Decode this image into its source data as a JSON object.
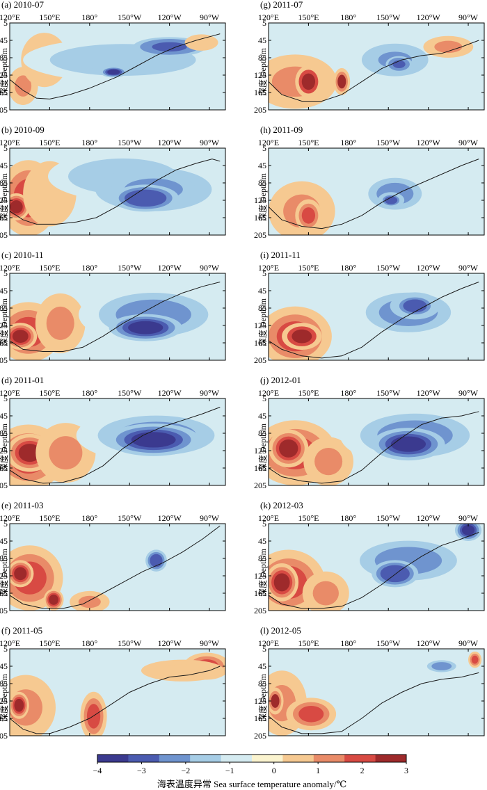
{
  "figure": {
    "colorbar": {
      "label": "海表温度异常 Sea surface temperature anomaly/℃",
      "ticks": [
        "-4",
        "-3",
        "-2",
        "-1",
        "0",
        "1",
        "2",
        "3"
      ],
      "range": [
        -4,
        3
      ],
      "colors": [
        "#3b3a8f",
        "#4b5bb0",
        "#6f94cf",
        "#a6cde6",
        "#d5ebf1",
        "#fbf4cf",
        "#f6c991",
        "#e98b68",
        "#d84a43",
        "#9e2a2b"
      ]
    },
    "x_ticks": [
      "120°E",
      "150°E",
      "180°",
      "150°W",
      "120°W",
      "90°W"
    ],
    "y_ticks": [
      "5",
      "45",
      "85",
      "125",
      "165",
      "205"
    ],
    "y_label": "深度 Depth/m"
  },
  "chart_data": [
    {
      "type": "heatmap",
      "panel": "(a) 2010-07",
      "title": "(a) 2010-07",
      "ylim": [
        205,
        5
      ],
      "features": [
        {
          "lon": 130,
          "depth": 150,
          "rx": 9,
          "rd": 35,
          "value": 1.2
        },
        {
          "lon": 146,
          "depth": 90,
          "rx": 14,
          "rd": 50,
          "value": 0.8
        },
        {
          "lon": 205,
          "depth": 90,
          "rx": 60,
          "rd": 40,
          "value": -1.6
        },
        {
          "lon": 240,
          "depth": 60,
          "rx": 22,
          "rd": 18,
          "value": -3.2
        },
        {
          "lon": 198,
          "depth": 118,
          "rx": 8,
          "rd": 10,
          "value": -3.4
        },
        {
          "lon": 264,
          "depth": 50,
          "rx": 10,
          "rd": 15,
          "value": 0.8
        }
      ],
      "thermocline": [
        [
          120,
          135
        ],
        [
          130,
          160
        ],
        [
          140,
          178
        ],
        [
          150,
          180
        ],
        [
          165,
          170
        ],
        [
          180,
          155
        ],
        [
          200,
          130
        ],
        [
          215,
          105
        ],
        [
          230,
          80
        ],
        [
          245,
          60
        ],
        [
          260,
          45
        ],
        [
          272,
          35
        ],
        [
          278,
          30
        ]
      ]
    },
    {
      "type": "heatmap",
      "panel": "(b) 2010-09",
      "title": "(b) 2010-09",
      "ylim": [
        205,
        5
      ],
      "features": [
        {
          "lon": 134,
          "depth": 120,
          "rx": 18,
          "rd": 70,
          "value": 1.7
        },
        {
          "lon": 125,
          "depth": 140,
          "rx": 8,
          "rd": 25,
          "value": 2.8
        },
        {
          "lon": 150,
          "depth": 110,
          "rx": 16,
          "rd": 60,
          "value": 0.8
        },
        {
          "lon": 205,
          "depth": 70,
          "rx": 45,
          "rd": 45,
          "value": -1.6
        },
        {
          "lon": 228,
          "depth": 100,
          "rx": 35,
          "rd": 40,
          "value": -2.4
        },
        {
          "lon": 222,
          "depth": 120,
          "rx": 20,
          "rd": 25,
          "value": -3.3
        }
      ],
      "thermocline": [
        [
          120,
          150
        ],
        [
          130,
          170
        ],
        [
          140,
          180
        ],
        [
          155,
          180
        ],
        [
          170,
          175
        ],
        [
          185,
          165
        ],
        [
          200,
          140
        ],
        [
          215,
          110
        ],
        [
          230,
          80
        ],
        [
          245,
          55
        ],
        [
          260,
          40
        ],
        [
          272,
          30
        ],
        [
          278,
          35
        ]
      ]
    },
    {
      "type": "heatmap",
      "panel": "(c) 2010-11",
      "title": "(c) 2010-11",
      "ylim": [
        205,
        5
      ],
      "features": [
        {
          "lon": 134,
          "depth": 140,
          "rx": 20,
          "rd": 55,
          "value": 2.1
        },
        {
          "lon": 128,
          "depth": 150,
          "rx": 10,
          "rd": 25,
          "value": 2.9
        },
        {
          "lon": 158,
          "depth": 120,
          "rx": 15,
          "rd": 55,
          "value": 1.0
        },
        {
          "lon": 228,
          "depth": 100,
          "rx": 45,
          "rd": 55,
          "value": -2.0
        },
        {
          "lon": 222,
          "depth": 130,
          "rx": 22,
          "rd": 25,
          "value": -3.4
        }
      ],
      "thermocline": [
        [
          120,
          160
        ],
        [
          130,
          180
        ],
        [
          145,
          185
        ],
        [
          160,
          185
        ],
        [
          175,
          175
        ],
        [
          190,
          150
        ],
        [
          205,
          120
        ],
        [
          220,
          95
        ],
        [
          235,
          70
        ],
        [
          250,
          50
        ],
        [
          265,
          35
        ],
        [
          278,
          25
        ]
      ]
    },
    {
      "type": "heatmap",
      "panel": "(d) 2011-01",
      "title": "(d) 2011-01",
      "ylim": [
        205,
        5
      ],
      "features": [
        {
          "lon": 134,
          "depth": 140,
          "rx": 22,
          "rd": 60,
          "value": 2.2
        },
        {
          "lon": 135,
          "depth": 130,
          "rx": 14,
          "rd": 35,
          "value": 2.9
        },
        {
          "lon": 162,
          "depth": 130,
          "rx": 18,
          "rd": 55,
          "value": 1.0
        },
        {
          "lon": 230,
          "depth": 90,
          "rx": 48,
          "rd": 50,
          "value": -2.2
        },
        {
          "lon": 228,
          "depth": 100,
          "rx": 28,
          "rd": 30,
          "value": -3.4
        }
      ],
      "thermocline": [
        [
          120,
          170
        ],
        [
          130,
          190
        ],
        [
          145,
          200
        ],
        [
          160,
          198
        ],
        [
          175,
          185
        ],
        [
          190,
          160
        ],
        [
          205,
          120
        ],
        [
          220,
          90
        ],
        [
          235,
          70
        ],
        [
          250,
          55
        ],
        [
          265,
          40
        ],
        [
          278,
          25
        ]
      ]
    },
    {
      "type": "heatmap",
      "panel": "(e) 2011-03",
      "title": "(e) 2011-03",
      "ylim": [
        205,
        5
      ],
      "features": [
        {
          "lon": 135,
          "depth": 130,
          "rx": 20,
          "rd": 60,
          "value": 1.7
        },
        {
          "lon": 128,
          "depth": 120,
          "rx": 8,
          "rd": 25,
          "value": 2.7
        },
        {
          "lon": 153,
          "depth": 180,
          "rx": 6,
          "rd": 20,
          "value": 2.6
        },
        {
          "lon": 180,
          "depth": 185,
          "rx": 12,
          "rd": 20,
          "value": 1.5
        },
        {
          "lon": 230,
          "depth": 90,
          "rx": 8,
          "rd": 25,
          "value": -2.6
        }
      ],
      "thermocline": [
        [
          120,
          170
        ],
        [
          130,
          190
        ],
        [
          145,
          200
        ],
        [
          160,
          200
        ],
        [
          175,
          190
        ],
        [
          190,
          165
        ],
        [
          205,
          140
        ],
        [
          220,
          115
        ],
        [
          235,
          95
        ],
        [
          250,
          70
        ],
        [
          265,
          40
        ],
        [
          278,
          10
        ]
      ]
    },
    {
      "type": "heatmap",
      "panel": "(f) 2011-05",
      "title": "(f) 2011-05",
      "ylim": [
        205,
        5
      ],
      "features": [
        {
          "lon": 132,
          "depth": 140,
          "rx": 18,
          "rd": 60,
          "value": 1.5
        },
        {
          "lon": 127,
          "depth": 135,
          "rx": 6,
          "rd": 25,
          "value": 2.6
        },
        {
          "lon": 183,
          "depth": 160,
          "rx": 8,
          "rd": 45,
          "value": 1.8
        },
        {
          "lon": 268,
          "depth": 45,
          "rx": 14,
          "rd": 25,
          "value": 1.8
        },
        {
          "lon": 250,
          "depth": 55,
          "rx": 25,
          "rd": 20,
          "value": 0.8
        }
      ],
      "thermocline": [
        [
          120,
          165
        ],
        [
          130,
          190
        ],
        [
          140,
          200
        ],
        [
          150,
          200
        ],
        [
          165,
          185
        ],
        [
          180,
          165
        ],
        [
          195,
          135
        ],
        [
          210,
          105
        ],
        [
          225,
          85
        ],
        [
          240,
          70
        ],
        [
          255,
          65
        ],
        [
          270,
          55
        ],
        [
          278,
          45
        ]
      ]
    },
    {
      "type": "heatmap",
      "panel": "(g) 2011-07",
      "title": "(g) 2011-07",
      "ylim": [
        205,
        5
      ],
      "features": [
        {
          "lon": 140,
          "depth": 140,
          "rx": 25,
          "rd": 50,
          "value": 1.3
        },
        {
          "lon": 150,
          "depth": 140,
          "rx": 8,
          "rd": 30,
          "value": 2.5
        },
        {
          "lon": 175,
          "depth": 140,
          "rx": 5,
          "rd": 25,
          "value": 2.3
        },
        {
          "lon": 215,
          "depth": 90,
          "rx": 20,
          "rd": 30,
          "value": -2.5
        },
        {
          "lon": 218,
          "depth": 100,
          "rx": 8,
          "rd": 15,
          "value": -3.2
        },
        {
          "lon": 255,
          "depth": 60,
          "rx": 15,
          "rd": 20,
          "value": 1.2
        }
      ],
      "thermocline": [
        [
          120,
          140
        ],
        [
          130,
          170
        ],
        [
          145,
          185
        ],
        [
          160,
          185
        ],
        [
          175,
          170
        ],
        [
          190,
          140
        ],
        [
          205,
          110
        ],
        [
          220,
          90
        ],
        [
          235,
          80
        ],
        [
          250,
          75
        ],
        [
          265,
          60
        ],
        [
          278,
          45
        ]
      ]
    },
    {
      "type": "heatmap",
      "panel": "(h) 2011-09",
      "title": "(h) 2011-09",
      "ylim": [
        205,
        5
      ],
      "features": [
        {
          "lon": 145,
          "depth": 150,
          "rx": 20,
          "rd": 55,
          "value": 1.1
        },
        {
          "lon": 150,
          "depth": 160,
          "rx": 8,
          "rd": 30,
          "value": 2.2
        },
        {
          "lon": 215,
          "depth": 110,
          "rx": 22,
          "rd": 40,
          "value": -2.2
        },
        {
          "lon": 212,
          "depth": 125,
          "rx": 8,
          "rd": 15,
          "value": -3.1
        }
      ],
      "thermocline": [
        [
          120,
          140
        ],
        [
          130,
          170
        ],
        [
          145,
          185
        ],
        [
          160,
          190
        ],
        [
          175,
          180
        ],
        [
          190,
          160
        ],
        [
          205,
          130
        ],
        [
          220,
          105
        ],
        [
          235,
          85
        ],
        [
          250,
          65
        ],
        [
          265,
          45
        ],
        [
          278,
          30
        ]
      ]
    },
    {
      "type": "heatmap",
      "panel": "(i) 2011-11",
      "title": "(i) 2011-11",
      "ylim": [
        205,
        5
      ],
      "features": [
        {
          "lon": 140,
          "depth": 150,
          "rx": 22,
          "rd": 55,
          "value": 1.7
        },
        {
          "lon": 145,
          "depth": 150,
          "rx": 12,
          "rd": 25,
          "value": 2.5
        },
        {
          "lon": 225,
          "depth": 95,
          "rx": 35,
          "rd": 50,
          "value": -2.2
        },
        {
          "lon": 230,
          "depth": 80,
          "rx": 15,
          "rd": 25,
          "value": -3.1
        }
      ],
      "thermocline": [
        [
          120,
          160
        ],
        [
          130,
          180
        ],
        [
          145,
          195
        ],
        [
          160,
          200
        ],
        [
          175,
          195
        ],
        [
          190,
          175
        ],
        [
          205,
          140
        ],
        [
          220,
          110
        ],
        [
          235,
          85
        ],
        [
          250,
          60
        ],
        [
          265,
          40
        ],
        [
          278,
          25
        ]
      ]
    },
    {
      "type": "heatmap",
      "panel": "(j) 2012-01",
      "title": "(j) 2012-01",
      "ylim": [
        205,
        5
      ],
      "features": [
        {
          "lon": 140,
          "depth": 130,
          "rx": 25,
          "rd": 60,
          "value": 2.2
        },
        {
          "lon": 135,
          "depth": 120,
          "rx": 12,
          "rd": 35,
          "value": 2.9
        },
        {
          "lon": 165,
          "depth": 150,
          "rx": 15,
          "rd": 45,
          "value": 1.0
        },
        {
          "lon": 230,
          "depth": 90,
          "rx": 45,
          "rd": 55,
          "value": -2.3
        },
        {
          "lon": 225,
          "depth": 110,
          "rx": 22,
          "rd": 30,
          "value": -3.4
        }
      ],
      "thermocline": [
        [
          120,
          165
        ],
        [
          130,
          185
        ],
        [
          145,
          195
        ],
        [
          160,
          200
        ],
        [
          175,
          195
        ],
        [
          190,
          170
        ],
        [
          205,
          130
        ],
        [
          220,
          95
        ],
        [
          235,
          65
        ],
        [
          250,
          50
        ],
        [
          265,
          45
        ],
        [
          278,
          35
        ]
      ]
    },
    {
      "type": "heatmap",
      "panel": "(k) 2012-03",
      "title": "(k) 2012-03",
      "ylim": [
        205,
        5
      ],
      "features": [
        {
          "lon": 135,
          "depth": 140,
          "rx": 22,
          "rd": 60,
          "value": 2.2
        },
        {
          "lon": 130,
          "depth": 140,
          "rx": 10,
          "rd": 35,
          "value": 2.9
        },
        {
          "lon": 163,
          "depth": 165,
          "rx": 14,
          "rd": 40,
          "value": 1.1
        },
        {
          "lon": 225,
          "depth": 90,
          "rx": 40,
          "rd": 50,
          "value": -2.2
        },
        {
          "lon": 215,
          "depth": 120,
          "rx": 14,
          "rd": 25,
          "value": -3.3
        },
        {
          "lon": 270,
          "depth": 20,
          "rx": 8,
          "rd": 20,
          "value": -3.5
        }
      ],
      "thermocline": [
        [
          120,
          170
        ],
        [
          130,
          190
        ],
        [
          145,
          200
        ],
        [
          160,
          200
        ],
        [
          175,
          195
        ],
        [
          190,
          175
        ],
        [
          205,
          145
        ],
        [
          220,
          110
        ],
        [
          235,
          80
        ],
        [
          250,
          55
        ],
        [
          265,
          40
        ],
        [
          278,
          25
        ]
      ]
    },
    {
      "type": "heatmap",
      "panel": "(l) 2012-05",
      "title": "(l) 2012-05",
      "ylim": [
        205,
        5
      ],
      "features": [
        {
          "lon": 130,
          "depth": 130,
          "rx": 15,
          "rd": 60,
          "value": 1.5
        },
        {
          "lon": 125,
          "depth": 125,
          "rx": 5,
          "rd": 25,
          "value": 2.4
        },
        {
          "lon": 152,
          "depth": 155,
          "rx": 15,
          "rd": 30,
          "value": 1.6
        },
        {
          "lon": 250,
          "depth": 45,
          "rx": 12,
          "rd": 15,
          "value": -2.2
        },
        {
          "lon": 275,
          "depth": 30,
          "rx": 4,
          "rd": 15,
          "value": 2.0
        }
      ],
      "thermocline": [
        [
          120,
          160
        ],
        [
          130,
          185
        ],
        [
          145,
          200
        ],
        [
          160,
          200
        ],
        [
          175,
          195
        ],
        [
          190,
          165
        ],
        [
          205,
          130
        ],
        [
          220,
          105
        ],
        [
          235,
          85
        ],
        [
          250,
          75
        ],
        [
          265,
          70
        ],
        [
          278,
          60
        ]
      ]
    }
  ]
}
